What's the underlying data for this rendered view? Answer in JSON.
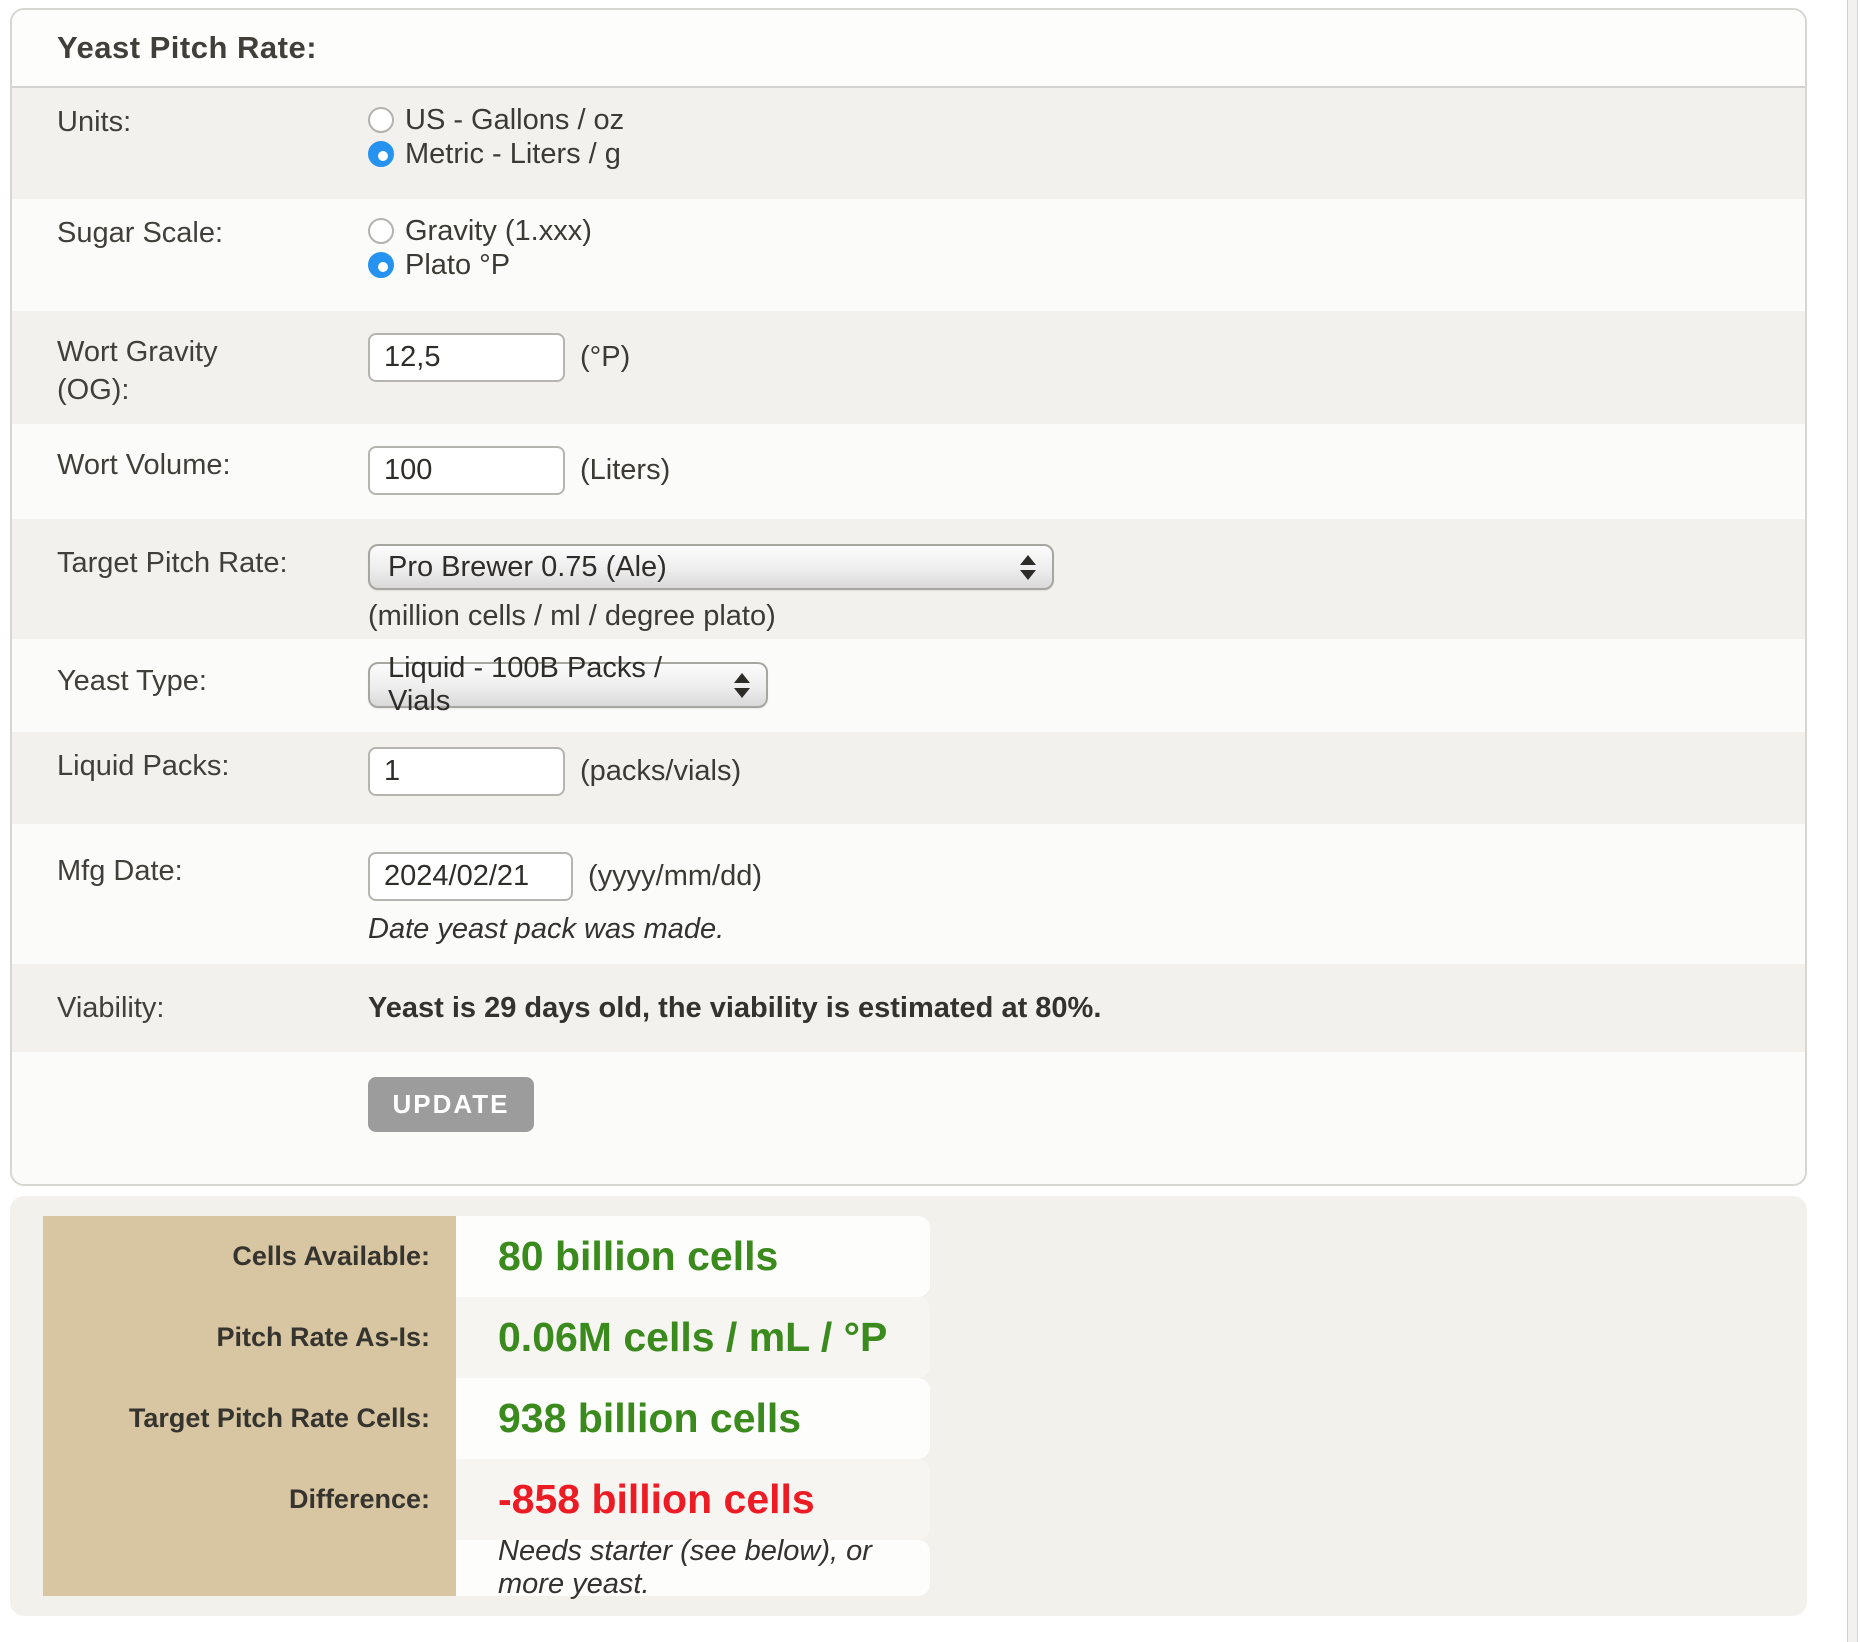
{
  "title": "Yeast Pitch Rate:",
  "rows": {
    "units": {
      "label": "Units:",
      "options": [
        {
          "label": "US - Gallons / oz",
          "selected": false
        },
        {
          "label": "Metric - Liters / g",
          "selected": true
        }
      ]
    },
    "sugar_scale": {
      "label": "Sugar Scale:",
      "options": [
        {
          "label": "Gravity (1.xxx)",
          "selected": false
        },
        {
          "label": "Plato °P",
          "selected": true
        }
      ]
    },
    "wort_gravity": {
      "label": "Wort Gravity (OG):",
      "value": "12,5",
      "unit": "(°P)"
    },
    "wort_volume": {
      "label": "Wort Volume:",
      "value": "100",
      "unit": "(Liters)"
    },
    "target_pitch_rate": {
      "label": "Target Pitch Rate:",
      "selected_option": "Pro Brewer 0.75 (Ale)",
      "caption": "(million cells / ml / degree plato)"
    },
    "yeast_type": {
      "label": "Yeast Type:",
      "selected_option": "Liquid - 100B Packs / Vials"
    },
    "liquid_packs": {
      "label": "Liquid Packs:",
      "value": "1",
      "unit": "(packs/vials)"
    },
    "mfg_date": {
      "label": "Mfg Date:",
      "value": "2024/02/21",
      "unit": "(yyyy/mm/dd)",
      "note": "Date yeast pack was made."
    },
    "viability": {
      "label": "Viability:",
      "text": "Yeast is 29 days old, the viability is estimated at 80%."
    }
  },
  "update_button_label": "UPDATE",
  "results": {
    "rows": [
      {
        "label": "Cells Available:",
        "value": "80 billion cells",
        "color": "#3a8a1d"
      },
      {
        "label": "Pitch Rate As-Is:",
        "value": "0.06M cells / mL / °P",
        "color": "#3a8a1d"
      },
      {
        "label": "Target Pitch Rate Cells:",
        "value": "938 billion cells",
        "color": "#3a8a1d"
      },
      {
        "label": "Difference:",
        "value": "-858 billion cells",
        "color": "#ed1c24"
      }
    ],
    "note": "Needs starter (see below), or more yeast."
  },
  "colors": {
    "radio_selected": "#2593ef",
    "row_stripe_gray": "#f2f1ed",
    "row_stripe_light": "#fbfbf9",
    "results_label_column": "#d8c6a2",
    "value_green": "#3a8a1d",
    "value_red": "#ed1c24",
    "update_button": "#9c9c9c"
  }
}
